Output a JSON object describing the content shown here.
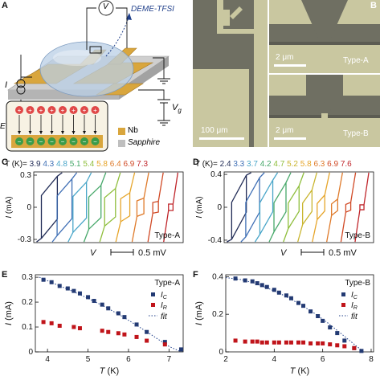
{
  "panels": {
    "A": {
      "letter": "A",
      "voltmeter": "V",
      "current_source": "I",
      "gate": "V",
      "gate_sub": "g",
      "liquid": "DEME-TFSI",
      "field": "E",
      "legend": [
        {
          "name": "Nb",
          "color": "#d4a13a"
        },
        {
          "name": "Sapphire",
          "color": "#bfbfbf"
        }
      ]
    },
    "B": {
      "letter": "B",
      "scalebar_large": "100 μm",
      "scalebar_small_1": "2 μm",
      "scalebar_small_2": "2 μm",
      "type_a": "Type-A",
      "type_b": "Type-B"
    },
    "C": {
      "letter": "C",
      "t_prefix": "T (K)=",
      "temps": [
        "3.9",
        "4.3",
        "4.8",
        "5.1",
        "5.4",
        "5.8",
        "6.4",
        "6.9",
        "7.3"
      ],
      "yticks": [
        "0.3",
        "0",
        "-0.3"
      ],
      "ylabel": "I",
      "yunit": "(mA)",
      "xlabel": "V",
      "scale": "0.5 mV",
      "type": "Type-A"
    },
    "D": {
      "letter": "D",
      "t_prefix": "T (K)=",
      "temps": [
        "2.4",
        "3.3",
        "3.7",
        "4.2",
        "4.7",
        "5.2",
        "5.8",
        "6.3",
        "6.9",
        "7.6"
      ],
      "yticks": [
        "0.4",
        "0",
        "-0.4"
      ],
      "ylabel": "I",
      "yunit": "(mA)",
      "xlabel": "V",
      "scale": "0.5 mV",
      "type": "Type-B"
    },
    "E": {
      "letter": "E"
    },
    "F": {
      "letter": "F"
    }
  },
  "curve_colors_C": [
    "#1f2a55",
    "#3f6fb5",
    "#4aa6c9",
    "#47a86a",
    "#8fbe3c",
    "#e6a52a",
    "#df7a2a",
    "#d14a26",
    "#c0262b"
  ],
  "curve_colors_D": [
    "#1f2a55",
    "#3f6fb5",
    "#4aa6c9",
    "#47a86a",
    "#8fbe3c",
    "#c9b52f",
    "#e6a52a",
    "#df7a2a",
    "#d14a26",
    "#c0262b"
  ],
  "chart_data": [
    {
      "panel": "C",
      "type": "line",
      "series_names": [
        "3.9",
        "4.3",
        "4.8",
        "5.1",
        "5.4",
        "5.8",
        "6.4",
        "6.9",
        "7.3"
      ],
      "ic": [
        0.29,
        0.265,
        0.235,
        0.205,
        0.175,
        0.135,
        0.085,
        0.055,
        0.03
      ],
      "ir": [
        0.11,
        0.105,
        0.1,
        0.095,
        0.09,
        0.08,
        0.06,
        0.045,
        0.03
      ],
      "ylim": [
        -0.33,
        0.33
      ]
    },
    {
      "panel": "D",
      "type": "line",
      "series_names": [
        "2.4",
        "3.3",
        "3.7",
        "4.2",
        "4.7",
        "5.2",
        "5.8",
        "6.3",
        "6.9",
        "7.6"
      ],
      "ic": [
        0.39,
        0.36,
        0.33,
        0.3,
        0.26,
        0.21,
        0.15,
        0.1,
        0.06,
        0.03
      ],
      "ir": [
        0.06,
        0.06,
        0.055,
        0.055,
        0.05,
        0.05,
        0.045,
        0.04,
        0.035,
        0.03
      ],
      "ylim": [
        -0.43,
        0.43
      ]
    },
    {
      "panel": "E",
      "type": "scatter",
      "xlabel": "T",
      "xunit": "(K)",
      "ylabel": "I",
      "yunit": "(mA)",
      "xlim": [
        3.7,
        7.35
      ],
      "ylim": [
        0,
        0.31
      ],
      "xticks": [
        4,
        5,
        6,
        7
      ],
      "yticks": [
        0,
        0.1,
        0.2,
        0.3
      ],
      "type_label": "Type-A",
      "legend": {
        "ic": "I",
        "ic_sub": "C",
        "ir": "I",
        "ir_sub": "R",
        "fit": "fit"
      },
      "ic_color": "#233a73",
      "ir_color": "#c0141a",
      "ic": {
        "x": [
          3.9,
          4.1,
          4.3,
          4.5,
          4.65,
          4.8,
          5.0,
          5.15,
          5.35,
          5.5,
          5.75,
          5.9,
          6.2,
          6.45,
          6.9,
          7.3
        ],
        "y": [
          0.29,
          0.28,
          0.265,
          0.255,
          0.245,
          0.235,
          0.22,
          0.205,
          0.19,
          0.175,
          0.155,
          0.14,
          0.11,
          0.08,
          0.04,
          0.01
        ]
      },
      "ir": {
        "x": [
          3.9,
          4.1,
          4.3,
          4.65,
          4.8,
          5.35,
          5.5,
          5.75,
          5.9,
          6.2,
          6.45,
          6.9
        ],
        "y": [
          0.12,
          0.115,
          0.105,
          0.1,
          0.095,
          0.085,
          0.08,
          0.075,
          0.07,
          0.06,
          0.045,
          0.03
        ]
      },
      "fit": {
        "x": [
          3.8,
          4.2,
          4.6,
          5.0,
          5.4,
          5.8,
          6.2,
          6.6,
          7.0,
          7.3
        ],
        "y": [
          0.3,
          0.272,
          0.245,
          0.215,
          0.183,
          0.147,
          0.107,
          0.065,
          0.022,
          0.0
        ]
      }
    },
    {
      "panel": "F",
      "type": "scatter",
      "xlabel": "T",
      "xunit": "(K)",
      "ylabel": "I",
      "yunit": "(mA)",
      "xlim": [
        2.0,
        8.1
      ],
      "ylim": [
        0,
        0.41
      ],
      "xticks": [
        2,
        4,
        6,
        8
      ],
      "yticks": [
        0,
        0.2,
        0.4
      ],
      "type_label": "Type-B",
      "legend": {
        "ic": "I",
        "ic_sub": "C",
        "ir": "I",
        "ir_sub": "R",
        "fit": "fit"
      },
      "ic_color": "#233a73",
      "ir_color": "#c0141a",
      "ic": {
        "x": [
          2.4,
          2.8,
          3.1,
          3.3,
          3.5,
          3.7,
          4.0,
          4.2,
          4.5,
          4.7,
          5.0,
          5.2,
          5.5,
          5.8,
          6.0,
          6.3,
          6.6,
          6.9,
          7.3,
          7.6
        ],
        "y": [
          0.39,
          0.38,
          0.375,
          0.365,
          0.355,
          0.345,
          0.33,
          0.315,
          0.3,
          0.285,
          0.26,
          0.245,
          0.215,
          0.19,
          0.165,
          0.13,
          0.1,
          0.06,
          0.02,
          0.005
        ]
      },
      "ir": {
        "x": [
          2.4,
          2.8,
          3.1,
          3.3,
          3.5,
          3.7,
          4.0,
          4.2,
          4.5,
          4.7,
          5.0,
          5.2,
          5.5,
          5.8,
          6.0,
          6.3,
          6.6,
          6.9,
          7.3
        ],
        "y": [
          0.06,
          0.055,
          0.055,
          0.055,
          0.05,
          0.05,
          0.05,
          0.05,
          0.05,
          0.05,
          0.05,
          0.05,
          0.045,
          0.045,
          0.045,
          0.04,
          0.035,
          0.03,
          0.02
        ]
      },
      "fit": {
        "x": [
          2.0,
          2.6,
          3.2,
          3.8,
          4.4,
          5.0,
          5.6,
          6.2,
          6.8,
          7.4,
          7.7
        ],
        "y": [
          0.395,
          0.385,
          0.365,
          0.335,
          0.3,
          0.258,
          0.21,
          0.155,
          0.093,
          0.03,
          0.0
        ]
      }
    }
  ]
}
